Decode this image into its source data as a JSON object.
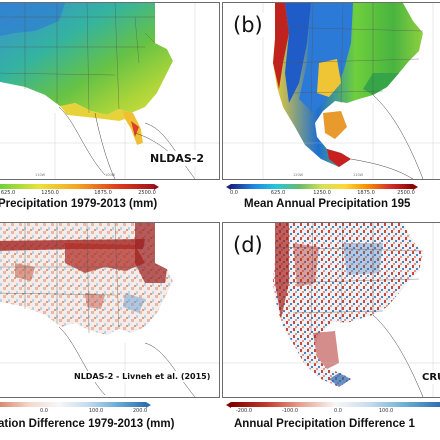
{
  "panels": {
    "a": {
      "label": "NLDAS-2"
    },
    "b": {
      "letter": "(b)"
    },
    "c": {
      "label": "NLDAS-2 - Livneh et al. (2015)"
    },
    "d": {
      "letter": "(d)",
      "label": "CRU"
    }
  },
  "colorbars": {
    "a": {
      "ticks": [
        "625.0",
        "1250.0",
        "1875.0",
        "2500.0"
      ]
    },
    "b": {
      "ticks": [
        "0.0",
        "625.0",
        "1250.0",
        "1875.0",
        "2500.0"
      ]
    },
    "c": {
      "ticks": [
        "0.0",
        "100.0",
        "200.0"
      ]
    },
    "d": {
      "ticks": [
        "-200.0",
        "-100.0",
        "0.0",
        "100.0"
      ]
    }
  },
  "captions": {
    "a": "Precipitation 1979-2013 (mm)",
    "b": "Mean Annual Precipitation 195",
    "c": "ation Difference 1979-2013 (mm)",
    "d": "Annual Precipitation Difference 1"
  },
  "lon_ticks": [
    "120W",
    "110W",
    "100W",
    "90W"
  ],
  "colors": {
    "precip_low": "#1565c0",
    "precip_mid": "#fdd835",
    "precip_high": "#b71c1c",
    "diff_neg": "#8e1b1b",
    "diff_pos": "#2f6fb0",
    "ocean": "#ffffff"
  }
}
